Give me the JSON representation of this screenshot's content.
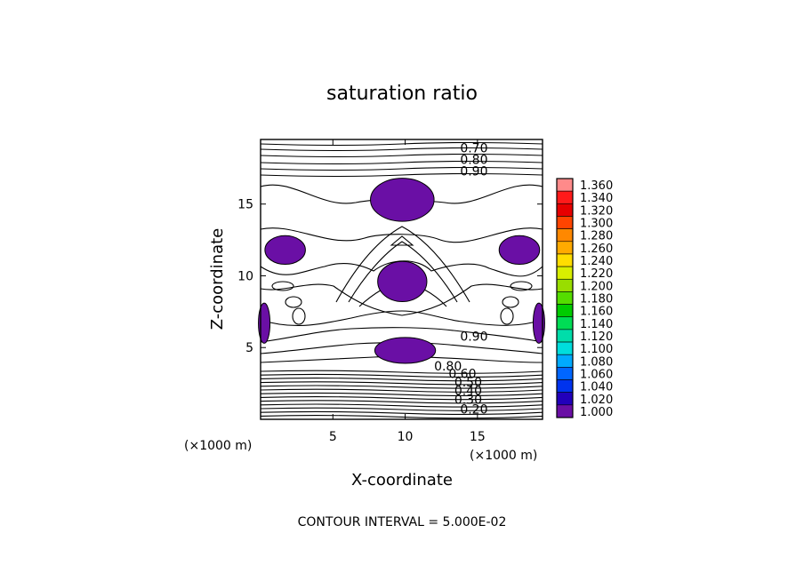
{
  "chart_data": {
    "type": "contour",
    "title": "saturation ratio",
    "xlabel": "X-coordinate",
    "ylabel": "Z-coordinate",
    "x_unit_left": "(×1000 m)",
    "x_unit_right": "(×1000 m)",
    "xlim": [
      0,
      19.5
    ],
    "ylim": [
      0,
      19.5
    ],
    "x_ticks": [
      5,
      10,
      15
    ],
    "y_ticks": [
      5,
      10,
      15
    ],
    "footer": "CONTOUR INTERVAL = 5.000E-02",
    "contour_interval": 0.05,
    "contour_labels": [
      {
        "text": "0.70",
        "x": 13.8,
        "y": 18.9
      },
      {
        "text": "0.80",
        "x": 13.8,
        "y": 18.1
      },
      {
        "text": "0.90",
        "x": 13.8,
        "y": 17.3
      },
      {
        "text": "0.90",
        "x": 13.8,
        "y": 5.8
      },
      {
        "text": "0.80",
        "x": 12.0,
        "y": 3.7
      },
      {
        "text": "0.60",
        "x": 13.0,
        "y": 3.2
      },
      {
        "text": "0.50",
        "x": 13.4,
        "y": 2.6
      },
      {
        "text": "0.40",
        "x": 13.4,
        "y": 2.0
      },
      {
        "text": "0.30",
        "x": 13.4,
        "y": 1.4
      },
      {
        "text": "0.20",
        "x": 13.8,
        "y": 0.7
      }
    ],
    "supersaturated_regions": [
      {
        "cx": 9.8,
        "cy": 15.3,
        "rx": 2.2,
        "ry": 1.5
      },
      {
        "cx": 9.8,
        "cy": 9.6,
        "rx": 1.7,
        "ry": 1.4
      },
      {
        "cx": 10.0,
        "cy": 4.8,
        "rx": 2.1,
        "ry": 0.9
      },
      {
        "cx": 1.7,
        "cy": 11.8,
        "rx": 1.4,
        "ry": 1.0
      },
      {
        "cx": 17.9,
        "cy": 11.8,
        "rx": 1.4,
        "ry": 1.0
      },
      {
        "cx": 0.25,
        "cy": 6.7,
        "rx": 0.4,
        "ry": 1.4
      },
      {
        "cx": 19.25,
        "cy": 6.7,
        "rx": 0.4,
        "ry": 1.4
      }
    ],
    "colorbar": {
      "levels": [
        "1.360",
        "1.340",
        "1.320",
        "1.300",
        "1.280",
        "1.260",
        "1.240",
        "1.220",
        "1.200",
        "1.180",
        "1.160",
        "1.140",
        "1.120",
        "1.100",
        "1.080",
        "1.060",
        "1.040",
        "1.020",
        "1.000"
      ],
      "colors": [
        "#ff8a8a",
        "#ff1a1a",
        "#e60000",
        "#ff4400",
        "#ff8800",
        "#ffaa00",
        "#ffdd00",
        "#d8ee00",
        "#99dd00",
        "#55dd00",
        "#00cc00",
        "#00dd55",
        "#00ddaa",
        "#00dddd",
        "#00aaff",
        "#0066ff",
        "#0033ee",
        "#2200bb",
        "#6a0fa5"
      ]
    },
    "fill_color": "#6a0fa5"
  }
}
